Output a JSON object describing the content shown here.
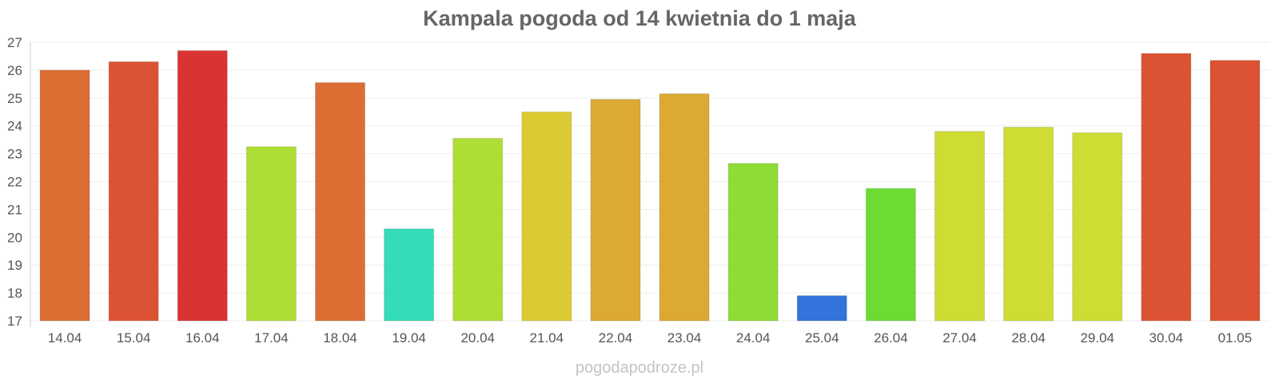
{
  "chart_data": {
    "type": "bar",
    "title": "Kampala pogoda od 14 kwietnia do 1 maja",
    "xlabel": "",
    "ylabel": "",
    "ylim": [
      17,
      27
    ],
    "yticks": [
      17,
      18,
      19,
      20,
      21,
      22,
      23,
      24,
      25,
      26,
      27
    ],
    "grid": true,
    "categories": [
      "14.04",
      "15.04",
      "16.04",
      "17.04",
      "18.04",
      "19.04",
      "20.04",
      "21.04",
      "22.04",
      "23.04",
      "24.04",
      "25.04",
      "26.04",
      "27.04",
      "28.04",
      "29.04",
      "30.04",
      "01.05"
    ],
    "values": [
      26.0,
      26.3,
      26.7,
      23.25,
      25.55,
      20.3,
      23.55,
      24.5,
      24.95,
      25.15,
      22.65,
      17.9,
      21.75,
      23.8,
      23.95,
      23.75,
      26.6,
      26.35
    ],
    "colors": [
      "#dc6d33",
      "#dc5333",
      "#d93434",
      "#aede35",
      "#dc6d33",
      "#35dcb8",
      "#aede35",
      "#dcca33",
      "#dca933",
      "#dca933",
      "#8edc35",
      "#3373dc",
      "#6cdc35",
      "#cedc33",
      "#cedc33",
      "#cedc33",
      "#dc5333",
      "#dc5333"
    ]
  },
  "watermark": "pogodapodroze.pl"
}
